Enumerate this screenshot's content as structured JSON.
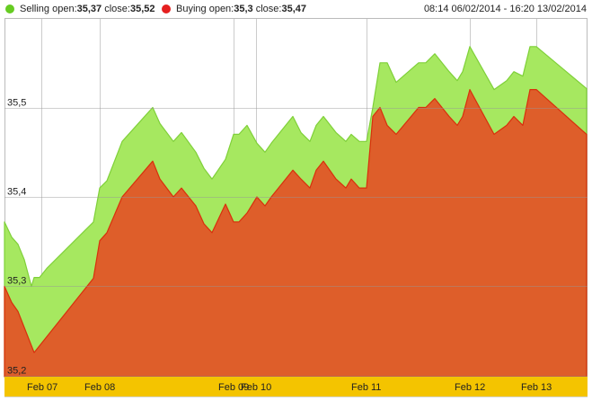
{
  "legend": {
    "selling": {
      "label": "Selling",
      "open_label": "open:",
      "open": "35,37",
      "close_label": "close:",
      "close": "35,52",
      "color": "#66cc22"
    },
    "buying": {
      "label": "Buying",
      "open_label": "open:",
      "open": "35,3",
      "close_label": "close:",
      "close": "35,47",
      "color": "#e51f1f"
    }
  },
  "range": "08:14 06/02/2014 - 16:20 13/02/2014",
  "colors": {
    "selling_fill": "#a6e860",
    "selling_line": "#7fd039",
    "buying_fill": "#de5e2a",
    "buying_line": "#d8300c",
    "axis_band": "#f4c400",
    "grid": "#cccccc"
  },
  "chart_data": {
    "type": "area",
    "title": "",
    "xlabel": "",
    "ylabel": "",
    "ylim": [
      35.2,
      35.6
    ],
    "grid": true,
    "legend_position": "top",
    "y_ticks": [
      "35,2",
      "35,3",
      "35,4",
      "35,5"
    ],
    "x_ticks": [
      "Feb 07",
      "Feb 08",
      "Feb 09",
      "Feb 10",
      "Feb 11",
      "Feb 12",
      "Feb 13"
    ],
    "series": [
      {
        "name": "Selling",
        "open": 35.37,
        "close": 35.52,
        "points_x": [
          5,
          13,
          20,
          27,
          35,
          38,
          44,
          52,
          104,
          111,
          119,
          136,
          170,
          178,
          193,
          202,
          218,
          227,
          236,
          251,
          260,
          266,
          275,
          286,
          295,
          302,
          326,
          335,
          345,
          352,
          360,
          374,
          385,
          391,
          400,
          408,
          415,
          423,
          431,
          441,
          466,
          474,
          484,
          500,
          509,
          515,
          523,
          550,
          564,
          572,
          582,
          590,
          597,
          653
        ],
        "values": [
          35.372,
          35.355,
          35.347,
          35.33,
          35.3,
          35.31,
          35.31,
          35.32,
          35.372,
          35.41,
          35.418,
          35.462,
          35.5,
          35.482,
          35.462,
          35.472,
          35.45,
          35.432,
          35.42,
          35.442,
          35.47,
          35.47,
          35.48,
          35.46,
          35.45,
          35.46,
          35.49,
          35.472,
          35.462,
          35.48,
          35.49,
          35.472,
          35.462,
          35.47,
          35.462,
          35.462,
          35.5,
          35.55,
          35.55,
          35.528,
          35.55,
          35.55,
          35.56,
          35.54,
          35.53,
          35.54,
          35.568,
          35.52,
          35.53,
          35.54,
          35.535,
          35.568,
          35.568,
          35.521
        ]
      },
      {
        "name": "Buying",
        "open": 35.3,
        "close": 35.47,
        "points_x": [
          5,
          13,
          20,
          38,
          104,
          111,
          119,
          136,
          170,
          178,
          193,
          202,
          218,
          227,
          236,
          251,
          260,
          266,
          275,
          286,
          295,
          302,
          326,
          335,
          345,
          352,
          360,
          374,
          385,
          391,
          400,
          408,
          415,
          423,
          431,
          441,
          466,
          474,
          484,
          500,
          509,
          515,
          523,
          550,
          564,
          572,
          582,
          590,
          597,
          653
        ],
        "values": [
          35.3,
          35.282,
          35.272,
          35.226,
          35.309,
          35.351,
          35.36,
          35.4,
          35.44,
          35.42,
          35.4,
          35.41,
          35.39,
          35.37,
          35.36,
          35.392,
          35.372,
          35.372,
          35.382,
          35.4,
          35.39,
          35.4,
          35.43,
          35.42,
          35.41,
          35.43,
          35.44,
          35.42,
          35.41,
          35.42,
          35.41,
          35.41,
          35.49,
          35.5,
          35.48,
          35.47,
          35.5,
          35.5,
          35.51,
          35.49,
          35.48,
          35.49,
          35.52,
          35.47,
          35.48,
          35.49,
          35.48,
          35.52,
          35.52,
          35.47
        ]
      }
    ]
  }
}
